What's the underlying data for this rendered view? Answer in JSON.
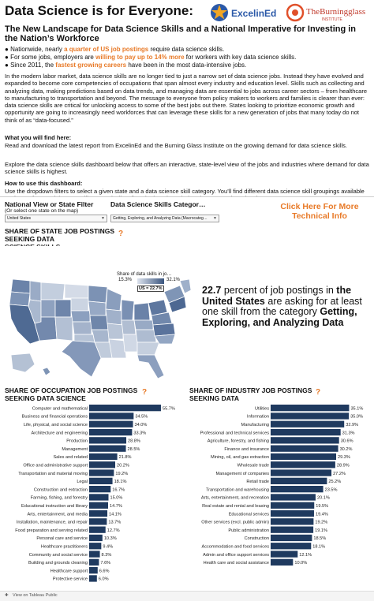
{
  "header": {
    "title": "Data Science is for Everyone:",
    "logo_excelined": "ExcelinEd",
    "logo_bg_top": "TheBurningglass",
    "logo_bg_bottom": "INSTITUTE",
    "subtitle": "The New Landscape for Data Science Skills and a National Imperative for Investing in the Nation’s Workforce"
  },
  "bullets": [
    {
      "pre": "Nationwide, nearly ",
      "hl": "a quarter of US job postings",
      "post": " require data science skills."
    },
    {
      "pre": "For some jobs, employers are ",
      "hl": "willing to pay up to 14% more",
      "post": " for workers with key data science skills."
    },
    {
      "pre": "Since 2011, the ",
      "hl": "fastest growing careers",
      "post": " have been in the most data-intensive jobs."
    }
  ],
  "intro_paragraph": "In the modern labor market, data science skills are no longer tied to just a narrow set of data science jobs. Instead they have evolved and expanded to become core competencies of occupations that span almost every industry and education level. Skills such as collecting and analyzing data, making predictions based on data trends, and managing data are essential to jobs across career sectors – from healthcare to manufacturing to transportation and beyond. The message to everyone from policy makers to workers and families is clearer than ever: data science skills are critical for unlocking access to some of the best jobs out there. States looking to prioritize economic growth and opportunity are going to increasingly need workforces that can leverage these skills for a new generation of jobs that many today do not think of as “data-focused.”",
  "find_heading": "What you will find here:",
  "find_text": "Read and download the latest report from ExcelinEd and the Burning Glass Institute on the growing demand for data science skills.",
  "explore_text": "Explore the data science skills dashboard below that offers an interactive, state-level view of the jobs and industries where demand for data science skills is highest.",
  "howto_heading": "How to use this dashboard:",
  "howto_text": "Use the dropdown filters to select a given state and a data science skill category. You’ll find different data science skill groupings available to choose from and the map will automatically adjust the bar charts below the map to show the share",
  "filters": {
    "title_left": "National View or State Filter",
    "title_right": "Data Science Skills Categor…",
    "sub": "(Or select one state on the map)",
    "state_value": "United States",
    "category_value": "Getting, Exploring, and Analyzing Data (Macrocateg…"
  },
  "click_info": "Click Here For More Technical Info",
  "map": {
    "title": "SHARE OF STATE JOB POSTINGS SEEKING DATA",
    "title_cut": "SCIENCE SKILLS",
    "question": "?",
    "legend_title": "Share of data skills in jo…",
    "legend_min": "15.3%",
    "legend_max": "32.1%",
    "us_label": "US = 22.7%",
    "colors": {
      "low": "#dde3ee",
      "high": "#3a557e"
    }
  },
  "stat": {
    "pct": "22.7",
    "t1": " percent of job postings in ",
    "place": "the United States",
    "t2": " are asking for at least one skill from the category ",
    "category": "Getting, Exploring, and Analyzing Data"
  },
  "chart_data": [
    {
      "type": "bar",
      "orientation": "horizontal",
      "title": "SHARE OF OCCUPATION JOB POSTINGS SEEKING DATA SCIENCE",
      "categories": [
        "Computer and mathematical",
        "Business and financial operations",
        "Life, physical, and social science",
        "Architecture and engineering",
        "Production",
        "Management",
        "Sales and related",
        "Office and administrative support",
        "Transportation and material moving",
        "Legal",
        "Construction and extraction",
        "Farming, fishing, and forestry",
        "Educational instruction and library",
        "Arts, entertainment, and media",
        "Installation, maintenance, and repair",
        "Food preparation and serving related",
        "Personal care and service",
        "Healthcare practitioners",
        "Community and social service",
        "Building and grounds cleaning",
        "Healthcare support",
        "Protective service"
      ],
      "values": [
        55.7,
        34.5,
        34.0,
        33.3,
        28.8,
        28.5,
        21.8,
        20.2,
        19.2,
        18.1,
        16.7,
        15.0,
        14.7,
        14.1,
        13.7,
        12.7,
        10.3,
        9.4,
        8.3,
        7.6,
        6.6,
        6.0
      ],
      "value_labels": [
        "55.7%",
        "34.5%",
        "34.0%",
        "33.3%",
        "28.8%",
        "28.5%",
        "21.8%",
        "20.2%",
        "19.2%",
        "18.1%",
        "16.7%",
        "15.0%",
        "14.7%",
        "14.1%",
        "13.7%",
        "12.7%",
        "10.3%",
        "9.4%",
        "8.3%",
        "7.6%",
        "6.6%",
        "6.0%"
      ],
      "xlim": [
        0,
        60
      ],
      "bar_color": "#1f3a5f"
    },
    {
      "type": "bar",
      "orientation": "horizontal",
      "title": "SHARE OF INDUSTRY JOB POSTINGS SEEKING DATA",
      "categories": [
        "Utilities",
        "Information",
        "Manufacturing",
        "Professional and technical services",
        "Agriculture, forestry, and fishing",
        "Finance and insurance",
        "Mining, oil, and gas extraction",
        "Wholesale trade",
        "Management of companies",
        "Retail trade",
        "Transportation and warehousing",
        "Arts, entertainment, and recreation",
        "Real estate and rental and leasing",
        "Educational services",
        "Other services (excl. public admin)",
        "Public administration",
        "Construction",
        "Accommodation and food services",
        "Admin and office support services",
        "Health care and social assistance"
      ],
      "values": [
        35.1,
        35.0,
        32.9,
        31.3,
        30.6,
        30.2,
        29.3,
        28.9,
        27.2,
        25.2,
        23.5,
        20.1,
        19.5,
        19.4,
        19.2,
        19.1,
        18.5,
        18.1,
        12.1,
        10.0
      ],
      "value_labels": [
        "35.1%",
        "35.0%",
        "32.9%",
        "31.3%",
        "30.6%",
        "30.2%",
        "29.3%",
        "28.9%",
        "27.2%",
        "25.2%",
        "23.5%",
        "20.1%",
        "19.5%",
        "19.4%",
        "19.2%",
        "19.1%",
        "18.5%",
        "18.1%",
        "12.1%",
        "10.0%"
      ],
      "xlim": [
        0,
        36
      ],
      "bar_color": "#1f3a5f"
    }
  ],
  "footer": {
    "tableau": "View on Tableau Public"
  }
}
